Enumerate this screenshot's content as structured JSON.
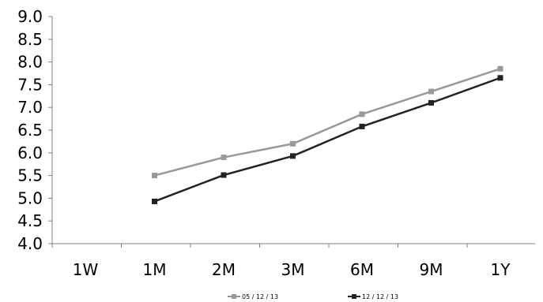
{
  "chart_data": {
    "type": "line",
    "title": "",
    "xlabel": "",
    "ylabel": "",
    "categories": [
      "1W",
      "1M",
      "2M",
      "3M",
      "6M",
      "9M",
      "1Y"
    ],
    "ylim": [
      4.0,
      9.0
    ],
    "y_ticks": [
      "4.0",
      "4.5",
      "5.0",
      "5.5",
      "6.0",
      "6.5",
      "7.0",
      "7.5",
      "8.0",
      "8.5",
      "9.0"
    ],
    "grid": false,
    "legend_position": "bottom",
    "series": [
      {
        "name": "05 / 12 / 13",
        "color": "#999999",
        "marker": "square",
        "values": [
          null,
          5.5,
          5.9,
          6.2,
          6.85,
          7.35,
          7.85
        ]
      },
      {
        "name": "12 / 12 / 13",
        "color": "#222222",
        "marker": "square",
        "values": [
          null,
          4.93,
          5.51,
          5.93,
          6.58,
          7.1,
          7.65
        ]
      }
    ]
  }
}
